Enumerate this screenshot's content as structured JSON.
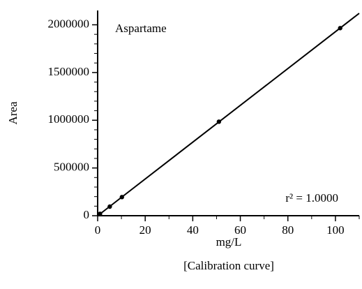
{
  "chart_data": {
    "type": "scatter",
    "annotation": "Aspartame",
    "r_squared_label": "r² = 1.0000",
    "xlabel": "mg/L",
    "ylabel": "Area",
    "caption": "[Calibration curve]",
    "x": [
      1,
      5.1,
      10.2,
      51,
      102
    ],
    "values": [
      20000,
      95000,
      195000,
      985000,
      1965000
    ],
    "color": "#000000",
    "xlim": [
      0,
      110
    ],
    "xticks": [
      0,
      20,
      40,
      60,
      80,
      100
    ],
    "ylim": [
      0,
      2150000
    ],
    "yticks": [
      0,
      500000,
      1000000,
      1500000,
      2000000
    ],
    "grid": false
  }
}
